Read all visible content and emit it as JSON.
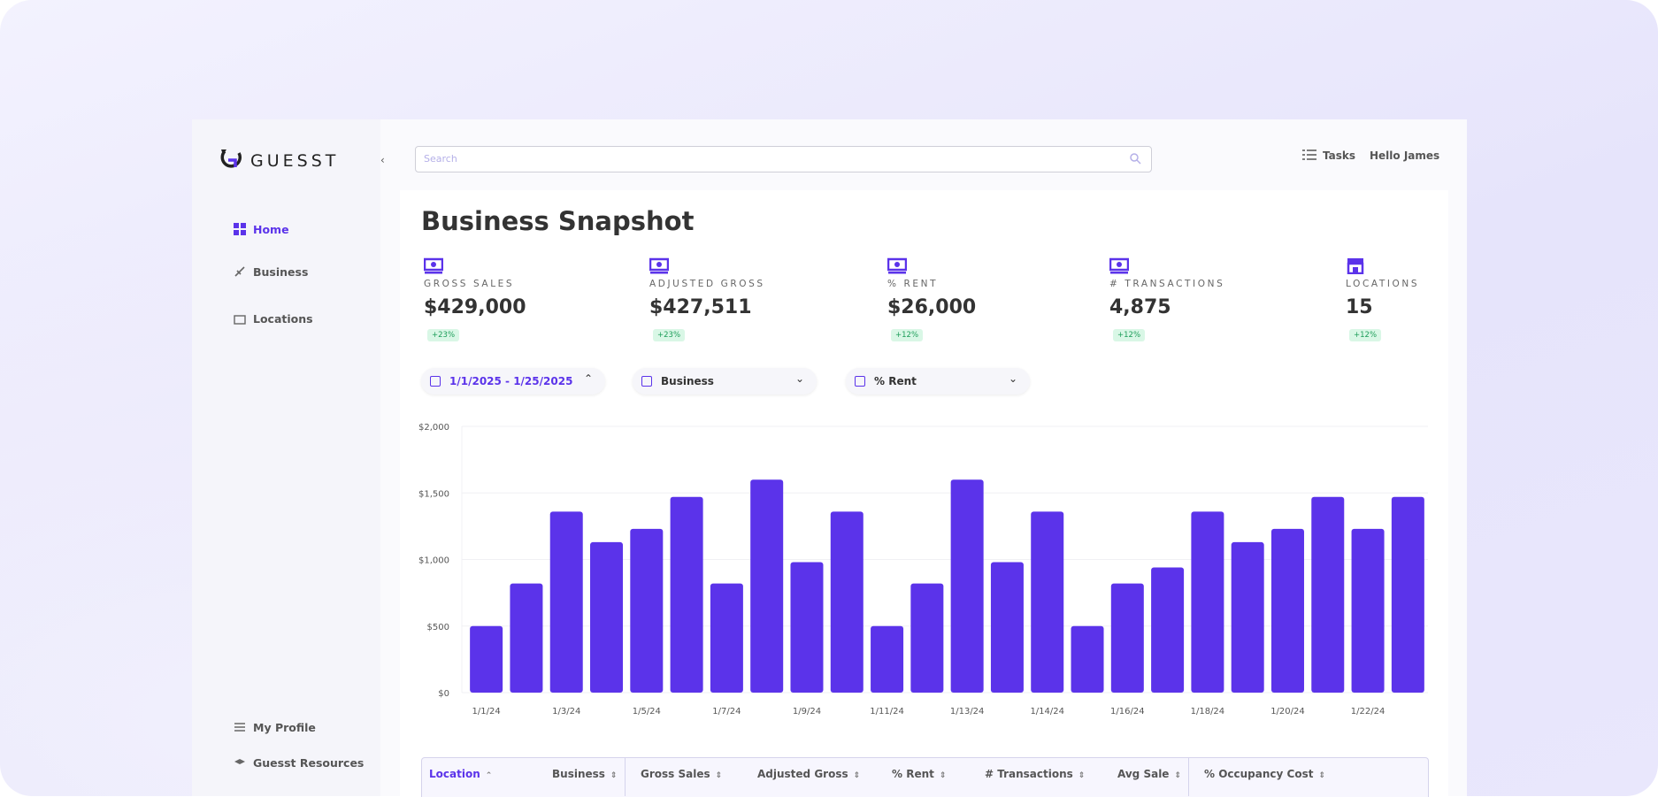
{
  "sidebar": {
    "brand": "GUESST",
    "nav": [
      "Home",
      "Business",
      "Locations"
    ],
    "bottom_nav": [
      "My Profile",
      "Guesst Resources"
    ]
  },
  "header": {
    "search_placeholder": "Search",
    "tasks": "Tasks",
    "greeting": "Hello James"
  },
  "title": "Business Snapshot",
  "kpis": [
    {
      "label": "GROSS SALES",
      "value": "$429,000",
      "change": "+23%"
    },
    {
      "label": "ADJUSTED GROSS",
      "value": "$427,511",
      "change": "+23%"
    },
    {
      "label": "% RENT",
      "value": "$26,000",
      "change": "+12%"
    },
    {
      "label": "# TRANSACTIONS",
      "value": "4,875",
      "change": "+12%"
    },
    {
      "label": "LOCATIONS",
      "value": "15",
      "change": "+12%"
    }
  ],
  "filters": [
    "1/1/2025 - 1/25/2025",
    "Business",
    "% Rent"
  ],
  "chart_data": {
    "type": "bar",
    "color": "#5b33ea",
    "grid": true,
    "categories": [
      "1/1/24",
      null,
      "1/3/24",
      null,
      "1/5/24",
      null,
      "1/7/24",
      null,
      "1/9/24",
      null,
      "1/11/24",
      null,
      "1/13/24",
      null,
      "1/14/24",
      null,
      "1/16/24",
      null,
      "1/18/24",
      null,
      "1/20/24",
      null,
      "1/22/24",
      null
    ],
    "values": [
      500,
      820,
      1360,
      1130,
      1230,
      1470,
      820,
      1600,
      980,
      1360,
      500,
      820,
      1600,
      980,
      1360,
      500,
      820,
      940,
      1360,
      1130,
      1230,
      1470,
      1230,
      1470
    ],
    "ylim": [
      0,
      2000
    ],
    "yticks": [
      {
        "value": 0,
        "label": "$0"
      },
      {
        "value": 500,
        "label": "$500"
      },
      {
        "value": 1000,
        "label": "$1,000"
      },
      {
        "value": 1500,
        "label": "$1,500"
      },
      {
        "value": 2000,
        "label": "$2,000"
      }
    ]
  },
  "table": {
    "columns": [
      "Location",
      "Business",
      "Gross Sales",
      "Adjusted Gross",
      "% Rent",
      "# Transactions",
      "Avg Sale",
      "% Occupancy Cost"
    ]
  }
}
